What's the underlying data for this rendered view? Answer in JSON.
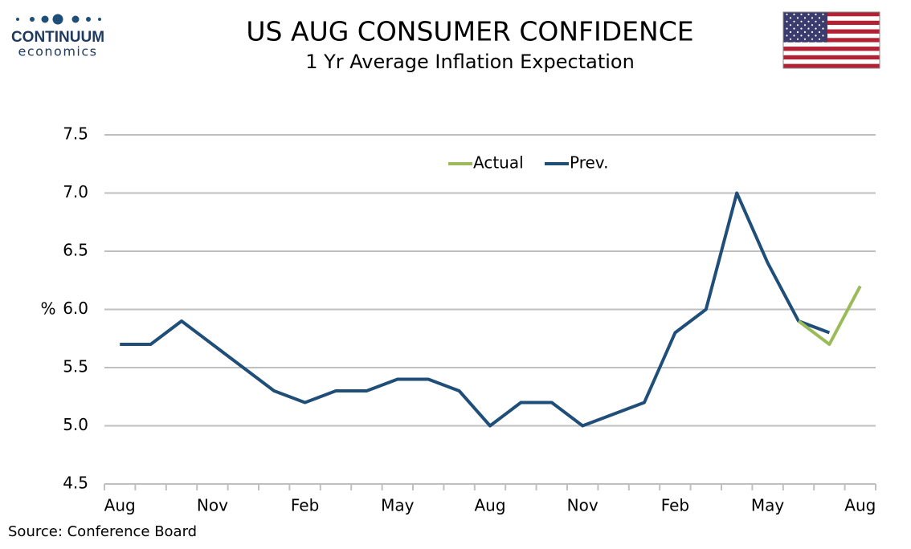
{
  "logo": {
    "name": "CONTINUUM",
    "tagline": "economics"
  },
  "source": "Source: Conference Board",
  "chart_data": {
    "type": "line",
    "title": "US AUG CONSUMER CONFIDENCE",
    "subtitle": "1 Yr Average Inflation Expectation",
    "y_label": "%",
    "categories": [
      "Aug",
      null,
      null,
      "Nov",
      null,
      null,
      "Feb",
      null,
      null,
      "May",
      null,
      null,
      "Aug",
      null,
      null,
      "Nov",
      null,
      null,
      "Feb",
      null,
      null,
      "May",
      null,
      null,
      "Aug"
    ],
    "series": [
      {
        "name": "Actual",
        "color": "#9bbb59",
        "values": [
          null,
          null,
          null,
          null,
          null,
          null,
          null,
          null,
          null,
          null,
          null,
          null,
          null,
          null,
          null,
          null,
          null,
          null,
          null,
          null,
          null,
          null,
          5.9,
          5.7,
          6.2
        ]
      },
      {
        "name": "Prev.",
        "color": "#1f4e79",
        "values": [
          5.7,
          5.7,
          5.9,
          5.7,
          5.5,
          5.3,
          5.2,
          5.3,
          5.3,
          5.4,
          5.4,
          5.3,
          5.0,
          5.2,
          5.2,
          5.0,
          5.1,
          5.2,
          5.8,
          6.0,
          7.0,
          6.4,
          5.9,
          5.8,
          null
        ]
      }
    ],
    "ylim": [
      4.5,
      7.5
    ],
    "yticks": [
      4.5,
      {
        "value": 5,
        "label": "5.0"
      },
      5.5,
      {
        "value": 6,
        "label": "6.0"
      },
      6.5,
      {
        "value": 7,
        "label": "7.0"
      },
      7.5
    ],
    "grid": true,
    "legend": "top"
  }
}
